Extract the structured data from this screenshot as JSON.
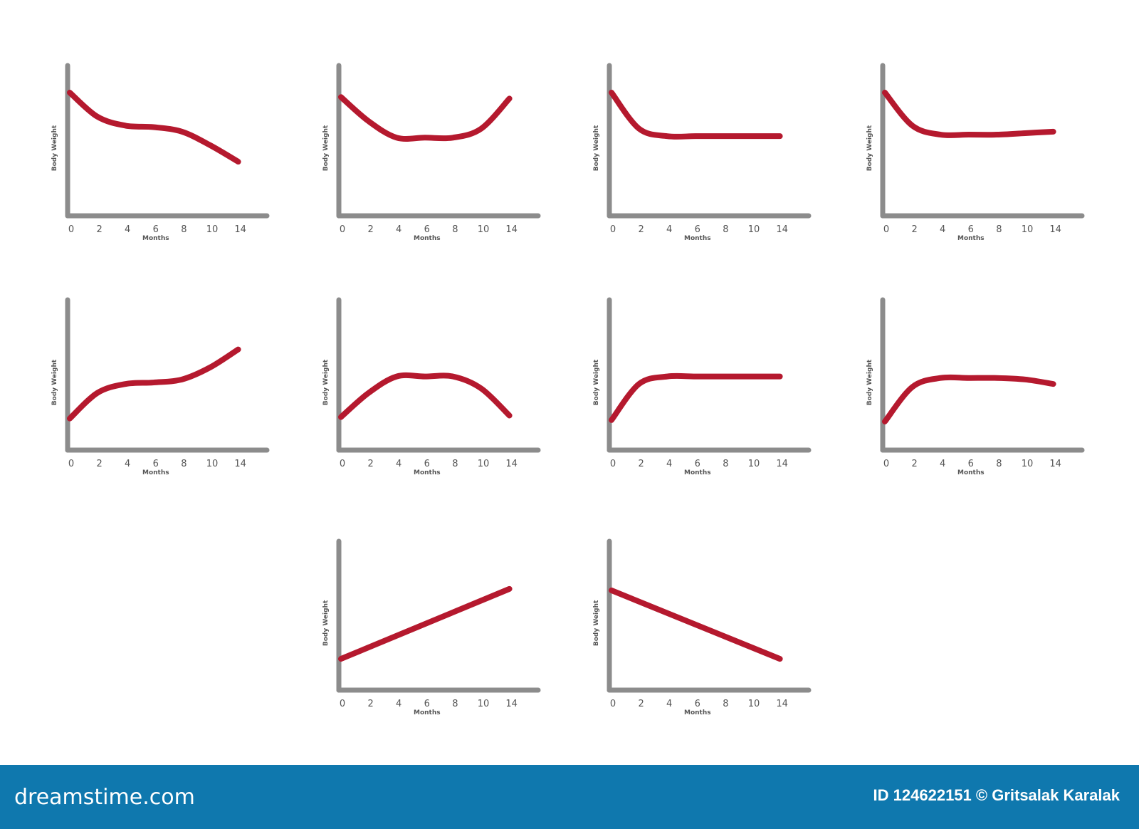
{
  "style": {
    "line_color": "#b5192e",
    "axis_color": "#8c8c8c",
    "footer_bg": "#0f78ae"
  },
  "chart_data": [
    {
      "type": "line",
      "xlabel": "Months",
      "ylabel": "Body Weight",
      "x_ticks": [
        "0",
        "2",
        "4",
        "6",
        "8",
        "10",
        "14"
      ],
      "ylim": [
        0,
        100
      ],
      "x": [
        0,
        2,
        4,
        6,
        8,
        10,
        14
      ],
      "values": [
        82,
        66,
        60,
        59,
        56,
        47,
        36
      ]
    },
    {
      "type": "line",
      "xlabel": "Months",
      "ylabel": "Body Weight",
      "x_ticks": [
        "0",
        "2",
        "4",
        "6",
        "8",
        "10",
        "14"
      ],
      "ylim": [
        0,
        100
      ],
      "x": [
        0,
        2,
        4,
        6,
        8,
        10,
        14
      ],
      "values": [
        79,
        63,
        52,
        52,
        52,
        58,
        78
      ]
    },
    {
      "type": "line",
      "xlabel": "Months",
      "ylabel": "Body Weight",
      "x_ticks": [
        "0",
        "2",
        "4",
        "6",
        "8",
        "10",
        "14"
      ],
      "ylim": [
        0,
        100
      ],
      "x": [
        0,
        2,
        4,
        6,
        8,
        10,
        14
      ],
      "values": [
        82,
        58,
        53,
        53,
        53,
        53,
        53
      ]
    },
    {
      "type": "line",
      "xlabel": "Months",
      "ylabel": "Body Weight",
      "x_ticks": [
        "0",
        "2",
        "4",
        "6",
        "8",
        "10",
        "14"
      ],
      "ylim": [
        0,
        100
      ],
      "x": [
        0,
        2,
        4,
        6,
        8,
        10,
        14
      ],
      "values": [
        82,
        60,
        54,
        54,
        54,
        55,
        56
      ]
    },
    {
      "type": "line",
      "xlabel": "Months",
      "ylabel": "Body Weight",
      "x_ticks": [
        "0",
        "2",
        "4",
        "6",
        "8",
        "10",
        "14"
      ],
      "ylim": [
        0,
        100
      ],
      "x": [
        0,
        2,
        4,
        6,
        8,
        10,
        14
      ],
      "values": [
        21,
        38,
        44,
        45,
        47,
        55,
        67
      ]
    },
    {
      "type": "line",
      "xlabel": "Months",
      "ylabel": "Body Weight",
      "x_ticks": [
        "0",
        "2",
        "4",
        "6",
        "8",
        "10",
        "14"
      ],
      "ylim": [
        0,
        100
      ],
      "x": [
        0,
        2,
        4,
        6,
        8,
        10,
        14
      ],
      "values": [
        22,
        38,
        49,
        49,
        49,
        41,
        23
      ]
    },
    {
      "type": "line",
      "xlabel": "Months",
      "ylabel": "Body Weight",
      "x_ticks": [
        "0",
        "2",
        "4",
        "6",
        "8",
        "10",
        "14"
      ],
      "ylim": [
        0,
        100
      ],
      "x": [
        0,
        2,
        4,
        6,
        8,
        10,
        14
      ],
      "values": [
        20,
        44,
        49,
        49,
        49,
        49,
        49
      ]
    },
    {
      "type": "line",
      "xlabel": "Months",
      "ylabel": "Body Weight",
      "x_ticks": [
        "0",
        "2",
        "4",
        "6",
        "8",
        "10",
        "14"
      ],
      "ylim": [
        0,
        100
      ],
      "x": [
        0,
        2,
        4,
        6,
        8,
        10,
        14
      ],
      "values": [
        19,
        42,
        48,
        48,
        48,
        47,
        44
      ]
    },
    {
      "type": "line",
      "xlabel": "Months",
      "ylabel": "Body Weight",
      "x_ticks": [
        "0",
        "2",
        "4",
        "6",
        "8",
        "10",
        "14"
      ],
      "ylim": [
        0,
        100
      ],
      "x": [
        0,
        14
      ],
      "values": [
        21,
        68
      ]
    },
    {
      "type": "line",
      "xlabel": "Months",
      "ylabel": "Body Weight",
      "x_ticks": [
        "0",
        "2",
        "4",
        "6",
        "8",
        "10",
        "14"
      ],
      "ylim": [
        0,
        100
      ],
      "x": [
        0,
        14
      ],
      "values": [
        67,
        21
      ]
    }
  ],
  "footer": {
    "logo": "dreamstime.com",
    "credit": "ID 124622151 © Gritsalak Karalak"
  }
}
